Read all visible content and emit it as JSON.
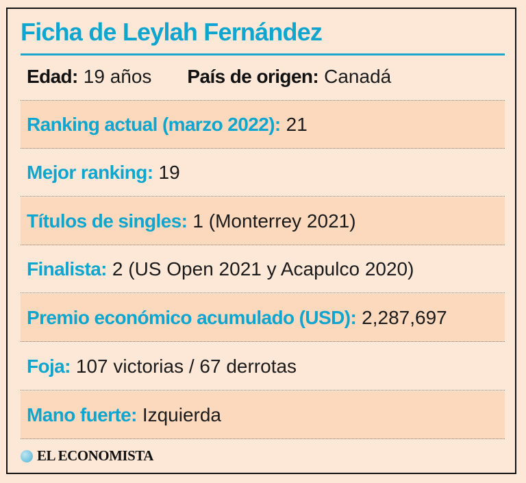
{
  "title": "Ficha de Leylah Fernández",
  "edad": {
    "label": "Edad:",
    "value": "19 años"
  },
  "pais": {
    "label": "País de origen:",
    "value": "Canadá"
  },
  "rows": [
    {
      "label": "Ranking actual (marzo 2022):",
      "value": "21"
    },
    {
      "label": "Mejor ranking:",
      "value": "19"
    },
    {
      "label": "Títulos de singles:",
      "value": "1 (Monterrey 2021)"
    },
    {
      "label": "Finalista:",
      "value": "2 (US Open 2021 y Acapulco 2020)"
    },
    {
      "label": "Premio económico acumulado (USD):",
      "value": "2,287,697"
    },
    {
      "label": "Foja:",
      "value": "107 victorias / 67 derrotas"
    },
    {
      "label": "Mano fuerte:",
      "value": "Izquierda"
    }
  ],
  "logo": "EL ECONOMISTA",
  "colors": {
    "accent": "#0ea5cf",
    "background": "#fde7d7",
    "shade": "#fcd8bd"
  }
}
